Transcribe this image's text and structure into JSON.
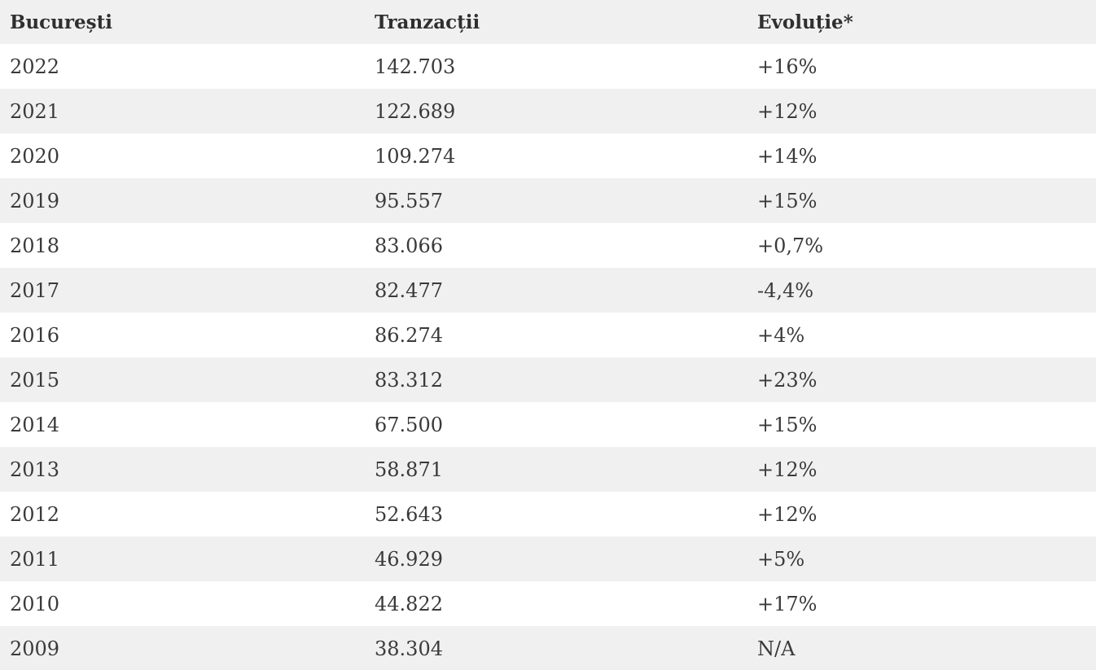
{
  "table": {
    "headers": [
      "București",
      "Tranzacții",
      "Evoluție*"
    ],
    "rows": [
      [
        "2022",
        "142.703",
        "+16%"
      ],
      [
        "2021",
        "122.689",
        "+12%"
      ],
      [
        "2020",
        "109.274",
        "+14%"
      ],
      [
        "2019",
        "95.557",
        "+15%"
      ],
      [
        "2018",
        "83.066",
        "+0,7%"
      ],
      [
        "2017",
        "82.477",
        "-4,4%"
      ],
      [
        "2016",
        "86.274",
        "+4%"
      ],
      [
        "2015",
        "83.312",
        "+23%"
      ],
      [
        "2014",
        "67.500",
        "+15%"
      ],
      [
        "2013",
        "58.871",
        "+12%"
      ],
      [
        "2012",
        "52.643",
        "+12%"
      ],
      [
        "2011",
        "46.929",
        "+5%"
      ],
      [
        "2010",
        "44.822",
        "+17%"
      ],
      [
        "2009",
        "38.304",
        "N/A"
      ]
    ]
  }
}
